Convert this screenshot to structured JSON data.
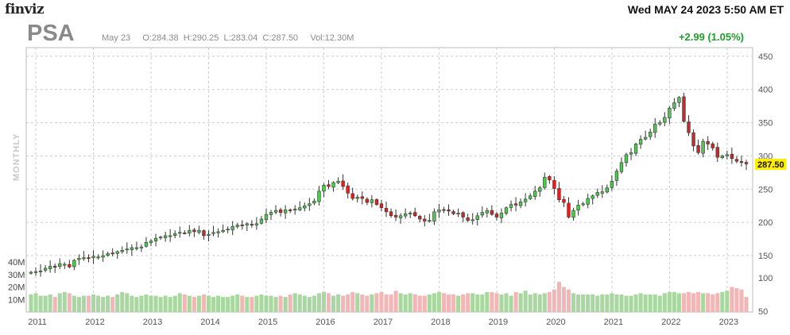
{
  "header": {
    "logo": "finviz",
    "datetime": "Wed MAY 24 2023 5:50 AM ET",
    "ticker": "PSA",
    "ohlc_line": "May 23     O:284.38  H:290.25  L:283.04  C:287.50     Vol:12.30M",
    "change": "+2.99 (1.05%)",
    "timeframe": "MONTHLY"
  },
  "colors": {
    "up": "#2aa12a",
    "up_fill": "#4ec94e",
    "down": "#c81919",
    "down_fill": "#e02020",
    "vol_up": "#a8d8a0",
    "vol_down": "#f3b6b6",
    "grid": "#cccccc",
    "last_price_bg": "#ffee00"
  },
  "chart_data": {
    "type": "candlestick",
    "interval": "monthly",
    "price_axis": {
      "ticks": [
        150,
        200,
        250,
        300,
        350,
        400,
        450
      ],
      "ylim": [
        113,
        463
      ]
    },
    "volume_axis": {
      "left_ticks": [
        "10M",
        "20M",
        "30M",
        "40M"
      ],
      "right_ticks": [
        50,
        100
      ]
    },
    "x_tick_labels": [
      "2011",
      "2012",
      "2013",
      "2014",
      "2015",
      "2016",
      "2017",
      "2018",
      "2019",
      "2020",
      "2021",
      "2022",
      "2023"
    ],
    "last_price": "287.50",
    "start": {
      "year": 2010,
      "month": 12
    },
    "monthly_close": [
      125,
      126,
      127,
      131,
      134,
      133,
      138,
      137,
      133,
      143,
      146,
      147,
      146,
      149,
      148,
      150,
      153,
      154,
      156,
      158,
      160,
      162,
      162,
      163,
      170,
      172,
      176,
      178,
      180,
      180,
      183,
      185,
      184,
      188,
      186,
      188,
      180,
      182,
      185,
      186,
      188,
      190,
      194,
      196,
      195,
      198,
      196,
      198,
      205,
      212,
      215,
      218,
      215,
      219,
      218,
      220,
      222,
      225,
      228,
      232,
      247,
      256,
      254,
      260,
      262,
      254,
      244,
      236,
      238,
      236,
      230,
      234,
      227,
      222,
      216,
      210,
      208,
      210,
      213,
      214,
      210,
      205,
      202,
      203,
      216,
      219,
      218,
      217,
      213,
      214,
      208,
      203,
      204,
      210,
      215,
      218,
      212,
      208,
      214,
      222,
      227,
      226,
      231,
      235,
      240,
      247,
      252,
      268,
      264,
      251,
      234,
      230,
      208,
      218,
      226,
      228,
      236,
      240,
      245,
      246,
      252,
      262,
      277,
      290,
      302,
      305,
      318,
      325,
      328,
      336,
      348,
      350,
      358,
      372,
      380,
      388,
      352,
      335,
      315,
      305,
      322,
      318,
      312,
      298,
      300,
      302,
      296,
      292,
      290,
      288
    ],
    "monthly_volume_millions": [
      14,
      15,
      13,
      13,
      14,
      12,
      15,
      16,
      15,
      13,
      12,
      13,
      13,
      14,
      13,
      12,
      13,
      12,
      14,
      16,
      15,
      13,
      12,
      13,
      14,
      13,
      13,
      12,
      13,
      12,
      13,
      15,
      14,
      13,
      12,
      13,
      14,
      13,
      12,
      13,
      12,
      12,
      13,
      14,
      13,
      12,
      12,
      13,
      14,
      13,
      13,
      12,
      13,
      12,
      14,
      15,
      14,
      13,
      12,
      13,
      15,
      16,
      15,
      13,
      14,
      13,
      14,
      16,
      15,
      14,
      13,
      14,
      15,
      16,
      14,
      14,
      17,
      15,
      14,
      15,
      14,
      13,
      13,
      14,
      15,
      16,
      15,
      14,
      14,
      13,
      14,
      15,
      15,
      14,
      14,
      16,
      16,
      15,
      14,
      15,
      13,
      16,
      15,
      17,
      14,
      15,
      14,
      15,
      16,
      18,
      24,
      20,
      18,
      15,
      14,
      14,
      14,
      14,
      13,
      14,
      14,
      15,
      14,
      14,
      13,
      13,
      14,
      15,
      14,
      14,
      14,
      13,
      15,
      16,
      16,
      15,
      15,
      16,
      15,
      16,
      15,
      15,
      14,
      15,
      16,
      17,
      20,
      19,
      18,
      12
    ]
  }
}
